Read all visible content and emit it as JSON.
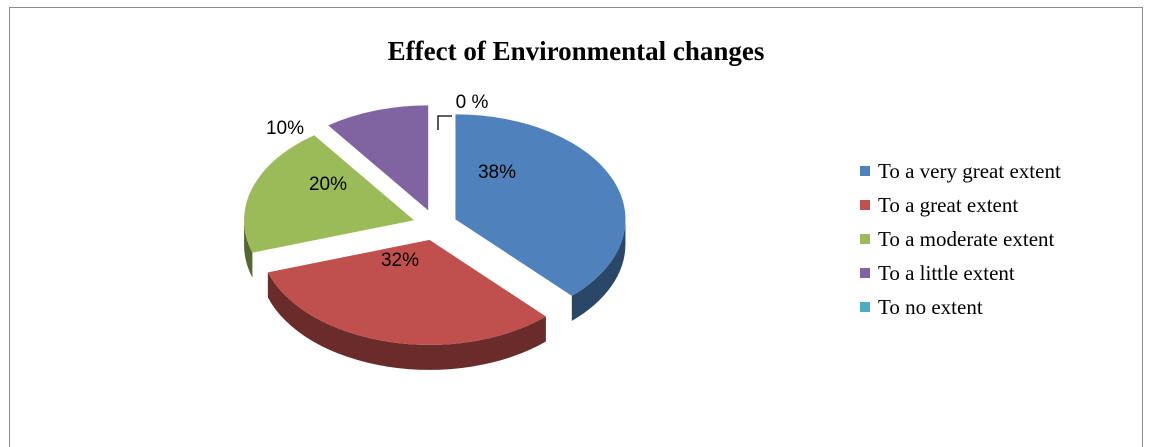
{
  "chart_data": {
    "type": "pie",
    "title": "Effect of Environmental changes",
    "categories": [
      "To a very great extent",
      "To a great extent",
      "To a moderate extent",
      "To a little extent",
      "To no extent"
    ],
    "values": [
      38,
      32,
      20,
      10,
      0
    ],
    "labels": [
      "38%",
      "32%",
      "20%",
      "10%",
      "0 %"
    ],
    "colors": [
      "#4F81BD",
      "#C0504D",
      "#9BBB59",
      "#8064A2",
      "#4BACC6"
    ],
    "style": "3d-exploded",
    "legend_position": "right"
  }
}
